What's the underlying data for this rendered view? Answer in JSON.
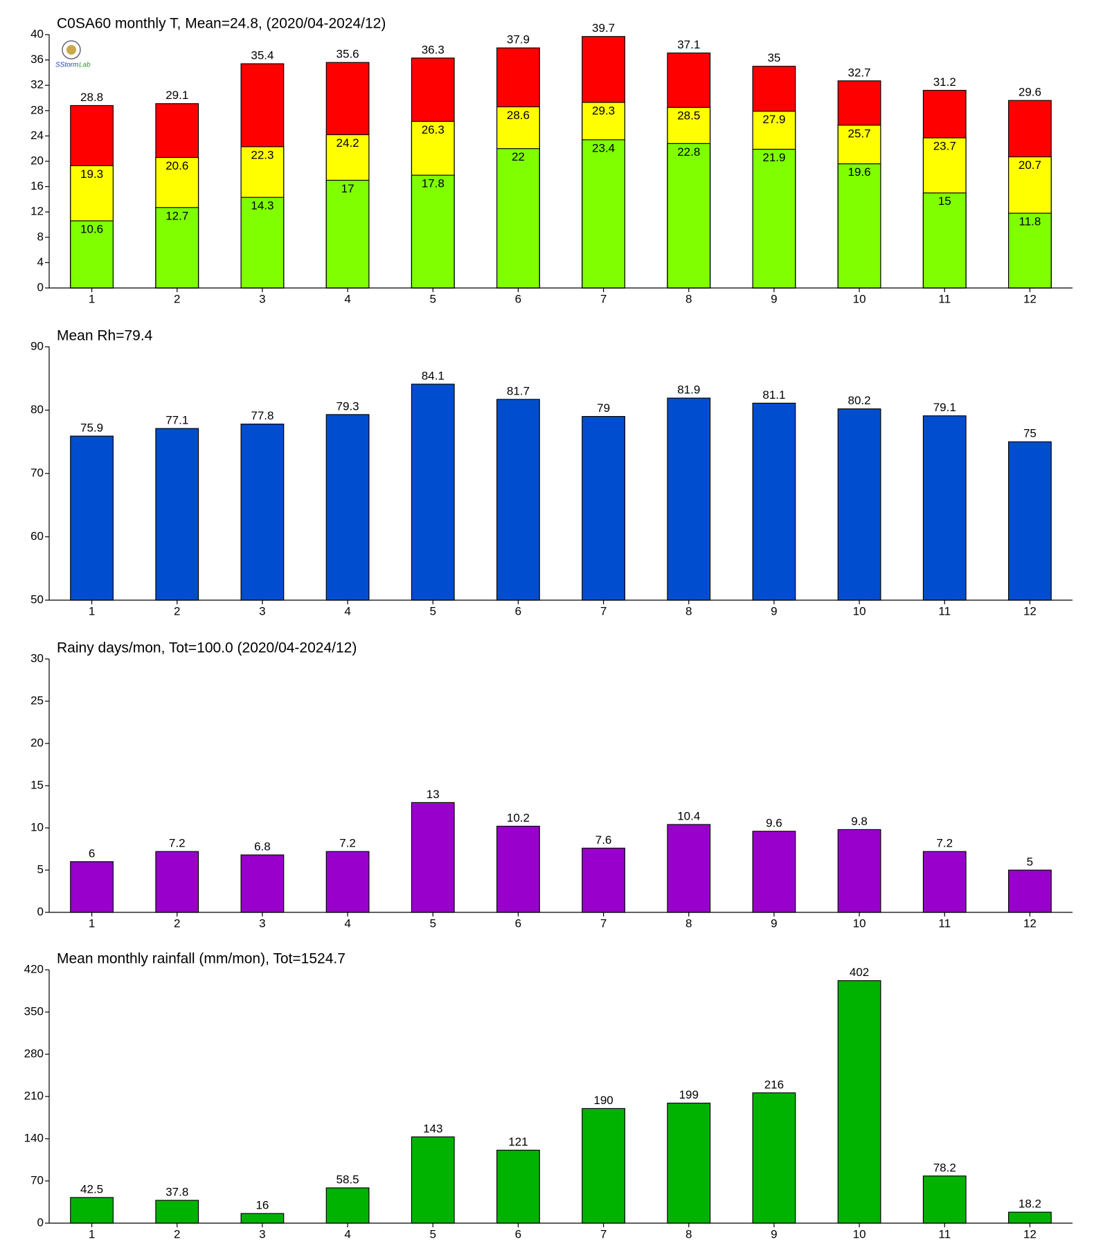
{
  "chart_data": [
    {
      "type": "bar",
      "title": "C0SA60 monthly T, Mean=24.8, (2020/04-2024/12)",
      "categories": [
        "1",
        "2",
        "3",
        "4",
        "5",
        "6",
        "7",
        "8",
        "9",
        "10",
        "11",
        "12"
      ],
      "series": [
        {
          "color": "#80ff00",
          "values": [
            10.6,
            12.7,
            14.3,
            17,
            17.8,
            22,
            23.4,
            22.8,
            21.9,
            19.6,
            15,
            11.8
          ]
        },
        {
          "color": "#ffff00",
          "values": [
            19.3,
            20.6,
            22.3,
            24.2,
            26.3,
            28.6,
            29.3,
            28.5,
            27.9,
            25.7,
            23.7,
            20.7
          ]
        },
        {
          "color": "#ff0000",
          "values": [
            28.8,
            29.1,
            35.4,
            35.6,
            36.3,
            37.9,
            39.7,
            37.1,
            35,
            32.7,
            31.2,
            29.6
          ]
        }
      ],
      "ylim": [
        0,
        40
      ],
      "yticks": [
        0,
        4,
        8,
        12,
        16,
        20,
        24,
        28,
        32,
        36,
        40
      ]
    },
    {
      "type": "bar",
      "title": "Mean Rh=79.4",
      "categories": [
        "1",
        "2",
        "3",
        "4",
        "5",
        "6",
        "7",
        "8",
        "9",
        "10",
        "11",
        "12"
      ],
      "values": [
        75.9,
        77.1,
        77.8,
        79.3,
        84.1,
        81.7,
        79,
        81.9,
        81.1,
        80.2,
        79.1,
        75
      ],
      "color": "#004ecf",
      "ylim": [
        50,
        90
      ],
      "yticks": [
        50,
        60,
        70,
        80,
        90
      ]
    },
    {
      "type": "bar",
      "title": "Rainy days/mon, Tot=100.0 (2020/04-2024/12)",
      "categories": [
        "1",
        "2",
        "3",
        "4",
        "5",
        "6",
        "7",
        "8",
        "9",
        "10",
        "11",
        "12"
      ],
      "values": [
        6,
        7.2,
        6.8,
        7.2,
        13,
        10.2,
        7.6,
        10.4,
        9.6,
        9.8,
        7.2,
        5
      ],
      "color": "#9900cc",
      "ylim": [
        0,
        30
      ],
      "yticks": [
        0,
        5,
        10,
        15,
        20,
        25,
        30
      ]
    },
    {
      "type": "bar",
      "title": "Mean monthly rainfall (mm/mon), Tot=1524.7",
      "categories": [
        "1",
        "2",
        "3",
        "4",
        "5",
        "6",
        "7",
        "8",
        "9",
        "10",
        "11",
        "12"
      ],
      "values": [
        42.5,
        37.8,
        16,
        58.5,
        143,
        121,
        190,
        199,
        216,
        402,
        78.2,
        18.2
      ],
      "color": "#00b300",
      "ylim": [
        0,
        420
      ],
      "yticks": [
        0,
        70,
        140,
        210,
        280,
        350,
        420
      ]
    }
  ]
}
